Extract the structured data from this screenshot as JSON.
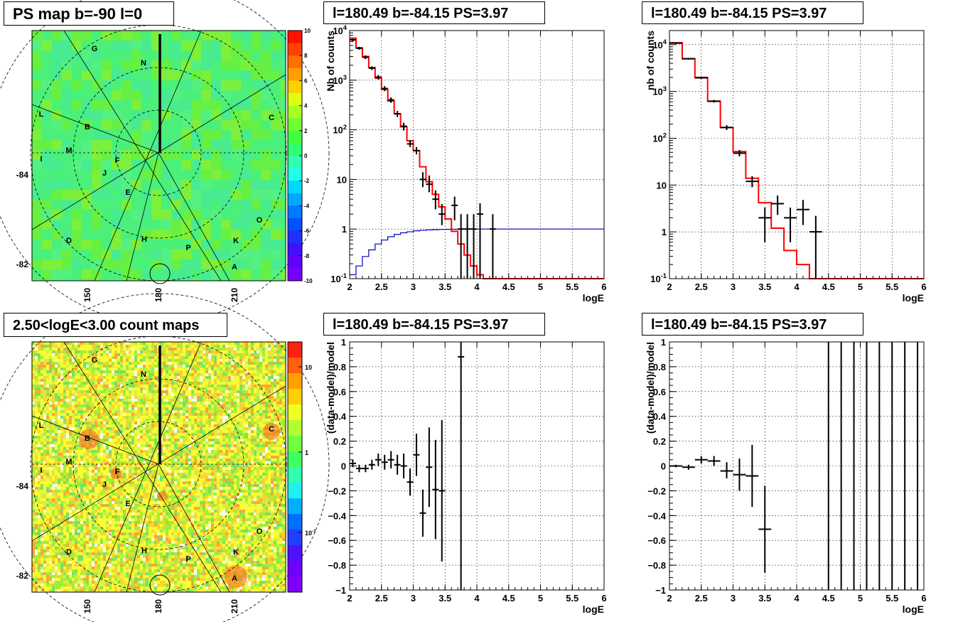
{
  "titles": {
    "psmap": "PS map b=-90 l=0",
    "countmap": "2.50<logE<3.00 count maps",
    "spec1": "l=180.49 b=-84.15 PS=3.97",
    "spec2": "l=180.49 b=-84.15 PS=3.97",
    "res1": "l=180.49 b=-84.15 PS=3.97",
    "res2": "l=180.49 b=-84.15 PS=3.97"
  },
  "maps": {
    "lat_ticks": [
      "-84",
      "-82"
    ],
    "lon_ticks": [
      "150",
      "180",
      "210"
    ],
    "source_labels": [
      {
        "label": "G",
        "lon": 148,
        "lat": -84.6
      },
      {
        "label": "N",
        "lon": 172,
        "lat": -85.8
      },
      {
        "label": "L",
        "lon": 122,
        "lat": -84.1
      },
      {
        "label": "C",
        "lon": 234,
        "lat": -84.6
      },
      {
        "label": "B",
        "lon": 150,
        "lat": -85.4
      },
      {
        "label": "M",
        "lon": 142,
        "lat": -85.0
      },
      {
        "label": "I",
        "lon": 115,
        "lat": -84.4
      },
      {
        "label": "F",
        "lon": 154,
        "lat": -86.4
      },
      {
        "label": "J",
        "lon": 147,
        "lat": -85.9
      },
      {
        "label": "E",
        "lon": 161,
        "lat": -86.3
      },
      {
        "label": "O",
        "lon": 222,
        "lat": -83.5
      },
      {
        "label": "D",
        "lon": 151,
        "lat": -82.8
      },
      {
        "label": "H",
        "lon": 175,
        "lat": -83.6
      },
      {
        "label": "K",
        "lon": 206,
        "lat": -82.9
      },
      {
        "label": "P",
        "lon": 192,
        "lat": -83.3
      },
      {
        "label": "A",
        "lon": 207,
        "lat": -82.1
      }
    ],
    "ps_colorbar": {
      "min": -10,
      "max": 10,
      "ticks": [
        "10",
        "8",
        "6",
        "4",
        "2",
        "0",
        "-2",
        "-4",
        "-6",
        "-8",
        "-10"
      ]
    },
    "count_colorbar": {
      "log": true,
      "ticks": [
        "10",
        "1",
        "10^-1"
      ]
    }
  },
  "chart_data": [
    {
      "type": "line",
      "title": "l=180.49 b=-84.15 PS=3.97",
      "xlabel": "logE",
      "ylabel": "Nb of counts",
      "xlim": [
        2,
        6
      ],
      "ylim": [
        0.1,
        10000
      ],
      "ylog": true,
      "grid": true,
      "x_ticks": [
        2,
        2.5,
        3,
        3.5,
        4,
        4.5,
        5,
        5.5,
        6
      ],
      "y_ticks": [
        0.1,
        1,
        10,
        100,
        1000,
        10000
      ],
      "y_tick_labels": [
        "10^-1",
        "1",
        "10",
        "10^2",
        "10^3",
        "10^4"
      ],
      "model_step": {
        "color": "#ff0000",
        "edges": [
          2.0,
          2.1,
          2.2,
          2.3,
          2.4,
          2.5,
          2.6,
          2.7,
          2.8,
          2.9,
          3.0,
          3.1,
          3.2,
          3.3,
          3.4,
          3.5,
          3.6,
          3.7,
          3.8,
          3.9,
          4.0,
          4.1,
          4.2
        ],
        "values": [
          7000,
          4500,
          3000,
          1800,
          1100,
          650,
          380,
          210,
          115,
          60,
          38,
          18,
          9,
          5,
          2.8,
          1.6,
          0.9,
          0.5,
          0.3,
          0.18,
          0.12,
          0.1
        ]
      },
      "acceptance_step": {
        "color": "#0000bb",
        "edges": [
          2.0,
          2.1,
          2.2,
          2.3,
          2.4,
          2.5,
          2.6,
          2.7,
          2.8,
          2.9,
          3.0,
          3.1,
          3.2,
          3.3,
          3.4,
          3.5,
          3.6,
          3.7,
          3.8,
          3.9,
          4.0,
          4.1,
          4.2,
          4.3,
          4.4,
          6.0
        ],
        "values": [
          0.12,
          0.18,
          0.28,
          0.38,
          0.5,
          0.6,
          0.7,
          0.78,
          0.84,
          0.88,
          0.92,
          0.94,
          0.96,
          0.97,
          0.98,
          0.985,
          0.99,
          0.99,
          0.995,
          1,
          1,
          1,
          1,
          1,
          1
        ]
      },
      "data_points": [
        {
          "x": 2.05,
          "xerr": 0.05,
          "y": 6500,
          "ylo": 6100,
          "yhi": 6900
        },
        {
          "x": 2.15,
          "xerr": 0.05,
          "y": 4400,
          "ylo": 4100,
          "yhi": 4700
        },
        {
          "x": 2.25,
          "xerr": 0.05,
          "y": 2900,
          "ylo": 2650,
          "yhi": 3150
        },
        {
          "x": 2.35,
          "xerr": 0.05,
          "y": 1750,
          "ylo": 1600,
          "yhi": 1900
        },
        {
          "x": 2.45,
          "xerr": 0.05,
          "y": 1150,
          "ylo": 1030,
          "yhi": 1270
        },
        {
          "x": 2.55,
          "xerr": 0.05,
          "y": 680,
          "ylo": 600,
          "yhi": 760
        },
        {
          "x": 2.65,
          "xerr": 0.05,
          "y": 400,
          "ylo": 350,
          "yhi": 450
        },
        {
          "x": 2.75,
          "xerr": 0.05,
          "y": 210,
          "ylo": 180,
          "yhi": 240
        },
        {
          "x": 2.85,
          "xerr": 0.05,
          "y": 118,
          "ylo": 97,
          "yhi": 139
        },
        {
          "x": 2.95,
          "xerr": 0.05,
          "y": 52,
          "ylo": 45,
          "yhi": 62
        },
        {
          "x": 3.05,
          "xerr": 0.05,
          "y": 38,
          "ylo": 32,
          "yhi": 45
        },
        {
          "x": 3.15,
          "xerr": 0.05,
          "y": 10,
          "ylo": 7,
          "yhi": 14
        },
        {
          "x": 3.25,
          "xerr": 0.05,
          "y": 8,
          "ylo": 5.5,
          "yhi": 12
        },
        {
          "x": 3.35,
          "xerr": 0.05,
          "y": 4,
          "ylo": 2.5,
          "yhi": 6
        },
        {
          "x": 3.45,
          "xerr": 0.05,
          "y": 2,
          "ylo": 1.2,
          "yhi": 3.2
        },
        {
          "x": 3.65,
          "xerr": 0.05,
          "y": 3,
          "ylo": 1.5,
          "yhi": 4.5
        },
        {
          "x": 3.75,
          "xerr": 0.05,
          "y": 1,
          "ylo": 0.1,
          "yhi": 2
        },
        {
          "x": 3.85,
          "xerr": 0.05,
          "y": 1,
          "ylo": 0.1,
          "yhi": 2
        },
        {
          "x": 3.95,
          "xerr": 0.05,
          "y": 1,
          "ylo": 0.1,
          "yhi": 2
        },
        {
          "x": 4.05,
          "xerr": 0.05,
          "y": 2,
          "ylo": 0.1,
          "yhi": 3.3
        },
        {
          "x": 4.25,
          "xerr": 0.05,
          "y": 1,
          "ylo": 0.1,
          "yhi": 2
        }
      ]
    },
    {
      "type": "line",
      "title": "l=180.49 b=-84.15 PS=3.97",
      "xlabel": "logE",
      "ylabel": "nb of counts",
      "xlim": [
        2,
        6
      ],
      "ylim": [
        0.1,
        20000
      ],
      "ylog": true,
      "grid": true,
      "x_ticks": [
        2,
        2.5,
        3,
        3.5,
        4,
        4.5,
        5,
        5.5,
        6
      ],
      "y_ticks": [
        0.1,
        1,
        10,
        100,
        1000,
        10000
      ],
      "y_tick_labels": [
        "10^-1",
        "1",
        "10",
        "10^2",
        "10^3",
        "10^4"
      ],
      "model_step": {
        "color": "#ff0000",
        "edges": [
          2.0,
          2.2,
          2.4,
          2.6,
          2.8,
          3.0,
          3.2,
          3.4,
          3.6,
          3.8,
          4.0,
          4.2,
          4.4
        ],
        "values": [
          11000,
          5000,
          2000,
          620,
          170,
          52,
          14,
          4.2,
          1.2,
          0.4,
          0.2,
          0.1
        ]
      },
      "data_points": [
        {
          "x": 2.1,
          "xerr": 0.1,
          "y": 10800,
          "ylo": 10400,
          "yhi": 11200
        },
        {
          "x": 2.3,
          "xerr": 0.1,
          "y": 5000,
          "ylo": 4800,
          "yhi": 5200
        },
        {
          "x": 2.5,
          "xerr": 0.1,
          "y": 1950,
          "ylo": 1850,
          "yhi": 2050
        },
        {
          "x": 2.7,
          "xerr": 0.1,
          "y": 620,
          "ylo": 580,
          "yhi": 660
        },
        {
          "x": 2.9,
          "xerr": 0.1,
          "y": 170,
          "ylo": 150,
          "yhi": 190
        },
        {
          "x": 3.1,
          "xerr": 0.1,
          "y": 48,
          "ylo": 41,
          "yhi": 56
        },
        {
          "x": 3.3,
          "xerr": 0.1,
          "y": 12,
          "ylo": 9,
          "yhi": 15.5
        },
        {
          "x": 3.5,
          "xerr": 0.1,
          "y": 2,
          "ylo": 0.6,
          "yhi": 3.3
        },
        {
          "x": 3.7,
          "xerr": 0.1,
          "y": 4,
          "ylo": 2.3,
          "yhi": 6
        },
        {
          "x": 3.9,
          "xerr": 0.1,
          "y": 2,
          "ylo": 0.6,
          "yhi": 3.3
        },
        {
          "x": 4.1,
          "xerr": 0.1,
          "y": 3,
          "ylo": 1.4,
          "yhi": 4.8
        },
        {
          "x": 4.3,
          "xerr": 0.1,
          "y": 1,
          "ylo": 0.1,
          "yhi": 2.2
        }
      ]
    },
    {
      "type": "scatter",
      "title": "l=180.49 b=-84.15 PS=3.97",
      "xlabel": "logE",
      "ylabel": "(data-model)/model",
      "xlim": [
        2,
        6
      ],
      "ylim": [
        -1,
        1
      ],
      "grid": true,
      "x_ticks": [
        2,
        2.5,
        3,
        3.5,
        4,
        4.5,
        5,
        5.5,
        6
      ],
      "y_ticks": [
        -1,
        -0.8,
        -0.6,
        -0.4,
        -0.2,
        0,
        0.2,
        0.4,
        0.6,
        0.8,
        1
      ],
      "data_points": [
        {
          "x": 2.05,
          "xerr": 0.05,
          "y": 0.02,
          "ylo": -0.01,
          "yhi": 0.05
        },
        {
          "x": 2.15,
          "xerr": 0.05,
          "y": -0.02,
          "ylo": -0.05,
          "yhi": 0.01
        },
        {
          "x": 2.25,
          "xerr": 0.05,
          "y": -0.02,
          "ylo": -0.05,
          "yhi": 0.01
        },
        {
          "x": 2.35,
          "xerr": 0.05,
          "y": 0.01,
          "ylo": -0.03,
          "yhi": 0.05
        },
        {
          "x": 2.45,
          "xerr": 0.05,
          "y": 0.05,
          "ylo": 0.0,
          "yhi": 0.1
        },
        {
          "x": 2.55,
          "xerr": 0.05,
          "y": 0.03,
          "ylo": -0.03,
          "yhi": 0.09
        },
        {
          "x": 2.65,
          "xerr": 0.05,
          "y": 0.05,
          "ylo": -0.02,
          "yhi": 0.12
        },
        {
          "x": 2.75,
          "xerr": 0.05,
          "y": 0.01,
          "ylo": -0.07,
          "yhi": 0.09
        },
        {
          "x": 2.85,
          "xerr": 0.05,
          "y": 0.0,
          "ylo": -0.1,
          "yhi": 0.1
        },
        {
          "x": 2.95,
          "xerr": 0.05,
          "y": -0.13,
          "ylo": -0.24,
          "yhi": -0.02
        },
        {
          "x": 3.05,
          "xerr": 0.05,
          "y": 0.09,
          "ylo": -0.08,
          "yhi": 0.26
        },
        {
          "x": 3.15,
          "xerr": 0.05,
          "y": -0.38,
          "ylo": -0.57,
          "yhi": -0.19
        },
        {
          "x": 3.25,
          "xerr": 0.05,
          "y": -0.01,
          "ylo": -0.33,
          "yhi": 0.31
        },
        {
          "x": 3.35,
          "xerr": 0.05,
          "y": -0.19,
          "ylo": -0.59,
          "yhi": 0.21
        },
        {
          "x": 3.45,
          "xerr": 0.05,
          "y": -0.2,
          "ylo": -0.77,
          "yhi": 0.37
        },
        {
          "x": 3.75,
          "xerr": 0.05,
          "y": 0.88,
          "ylo": -1.0,
          "yhi": 1.0
        }
      ]
    },
    {
      "type": "scatter",
      "title": "l=180.49 b=-84.15 PS=3.97",
      "xlabel": "logE",
      "ylabel": "(data-model)/model",
      "xlim": [
        2,
        6
      ],
      "ylim": [
        -1,
        1
      ],
      "grid": true,
      "x_ticks": [
        2,
        2.5,
        3,
        3.5,
        4,
        4.5,
        5,
        5.5,
        6
      ],
      "y_ticks": [
        -1,
        -0.8,
        -0.6,
        -0.4,
        -0.2,
        0,
        0.2,
        0.4,
        0.6,
        0.8,
        1
      ],
      "data_points": [
        {
          "x": 2.1,
          "xerr": 0.1,
          "y": 0.0,
          "ylo": -0.01,
          "yhi": 0.01
        },
        {
          "x": 2.3,
          "xerr": 0.1,
          "y": -0.01,
          "ylo": -0.03,
          "yhi": 0.01
        },
        {
          "x": 2.5,
          "xerr": 0.1,
          "y": 0.05,
          "ylo": 0.02,
          "yhi": 0.08
        },
        {
          "x": 2.7,
          "xerr": 0.1,
          "y": 0.04,
          "ylo": 0.0,
          "yhi": 0.08
        },
        {
          "x": 2.9,
          "xerr": 0.1,
          "y": -0.04,
          "ylo": -0.1,
          "yhi": 0.03
        },
        {
          "x": 3.1,
          "xerr": 0.1,
          "y": -0.07,
          "ylo": -0.2,
          "yhi": 0.06
        },
        {
          "x": 3.3,
          "xerr": 0.1,
          "y": -0.08,
          "ylo": -0.33,
          "yhi": 0.17
        },
        {
          "x": 3.5,
          "xerr": 0.1,
          "y": -0.51,
          "ylo": -0.86,
          "yhi": -0.16
        },
        {
          "x": 4.5,
          "xerr": 0.0,
          "y": 1.0,
          "ylo": -1.0,
          "yhi": 1.0
        },
        {
          "x": 4.7,
          "xerr": 0.0,
          "y": 1.0,
          "ylo": -1.0,
          "yhi": 1.0
        },
        {
          "x": 4.9,
          "xerr": 0.0,
          "y": 1.0,
          "ylo": -1.0,
          "yhi": 1.0
        },
        {
          "x": 5.1,
          "xerr": 0.0,
          "y": 1.0,
          "ylo": -1.0,
          "yhi": 1.0
        },
        {
          "x": 5.3,
          "xerr": 0.0,
          "y": 1.0,
          "ylo": -1.0,
          "yhi": 1.0
        },
        {
          "x": 5.5,
          "xerr": 0.0,
          "y": 1.0,
          "ylo": -1.0,
          "yhi": 1.0
        },
        {
          "x": 5.7,
          "xerr": 0.0,
          "y": 1.0,
          "ylo": -1.0,
          "yhi": 1.0
        },
        {
          "x": 5.9,
          "xerr": 0.0,
          "y": 1.0,
          "ylo": -1.0,
          "yhi": 1.0
        }
      ]
    }
  ]
}
